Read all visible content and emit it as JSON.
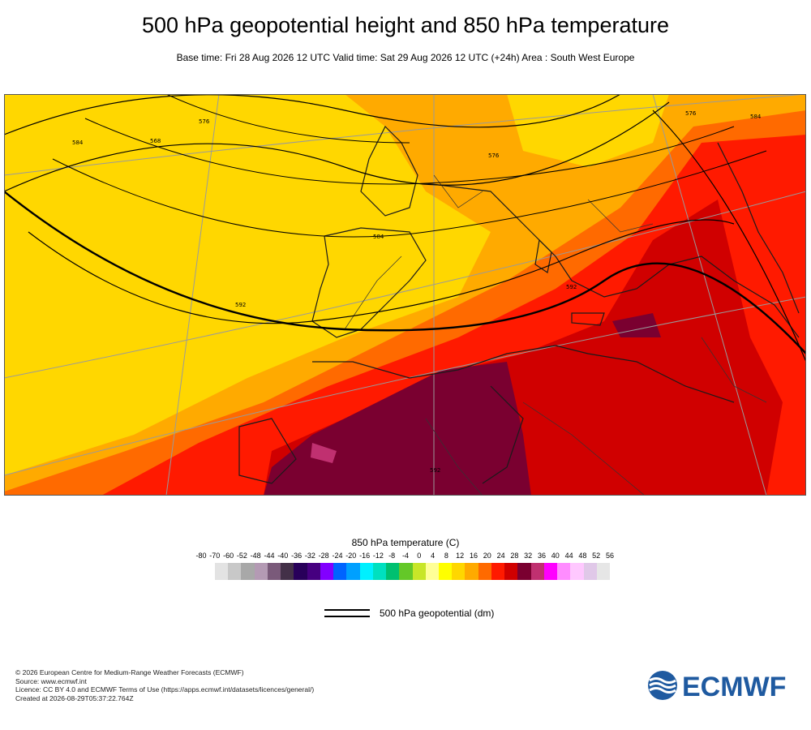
{
  "header": {
    "title": "500 hPa geopotential height and 850 hPa temperature",
    "subtitle": "Base time: Fri 28 Aug 2026 12 UTC Valid time: Sat 29 Aug 2026 12 UTC (+24h) Area : South West Europe"
  },
  "map": {
    "contour_labels": [
      "576",
      "584",
      "568",
      "592",
      "576",
      "584",
      "592",
      "576",
      "584",
      "592"
    ],
    "band_colors": [
      "#ffd700",
      "#ffaa00",
      "#ff6a00",
      "#ff1a00",
      "#d00000",
      "#7a0030"
    ]
  },
  "legend": {
    "title": "850 hPa temperature (C)",
    "ticks": [
      "-80",
      "-70",
      "-60",
      "-52",
      "-48",
      "-44",
      "-40",
      "-36",
      "-32",
      "-28",
      "-24",
      "-20",
      "-16",
      "-12",
      "-8",
      "-4",
      "0",
      "4",
      "8",
      "12",
      "16",
      "20",
      "24",
      "28",
      "32",
      "36",
      "40",
      "44",
      "48",
      "52",
      "56"
    ],
    "colors": [
      "#e3e3e3",
      "#c8c8c8",
      "#a8a8a8",
      "#b49ab4",
      "#7a5a7a",
      "#433048",
      "#28005a",
      "#460080",
      "#8200ff",
      "#0064ff",
      "#00a0ff",
      "#00f0ff",
      "#00e0c0",
      "#00c070",
      "#64c828",
      "#c8e628",
      "#ffff96",
      "#ffff00",
      "#ffd700",
      "#ffaa00",
      "#ff6a00",
      "#ff1a00",
      "#d00000",
      "#7a0030",
      "#c03070",
      "#ff00ff",
      "#ff8cff",
      "#ffc8ff",
      "#e0c8e8",
      "#e6e6e6"
    ],
    "geo_label": "500 hPa geopotential (dm)"
  },
  "footer": {
    "line1": "© 2026 European Centre for Medium-Range Weather Forecasts (ECMWF)",
    "line2": "Source: www.ecmwf.int",
    "line3": "Licence: CC BY 4.0 and ECMWF Terms of Use (https://apps.ecmwf.int/datasets/licences/general/)",
    "line4": "Created at 2026-08-29T05:37:22.764Z"
  },
  "logo": {
    "text": "ECMWF",
    "color": "#1f5aa0"
  }
}
